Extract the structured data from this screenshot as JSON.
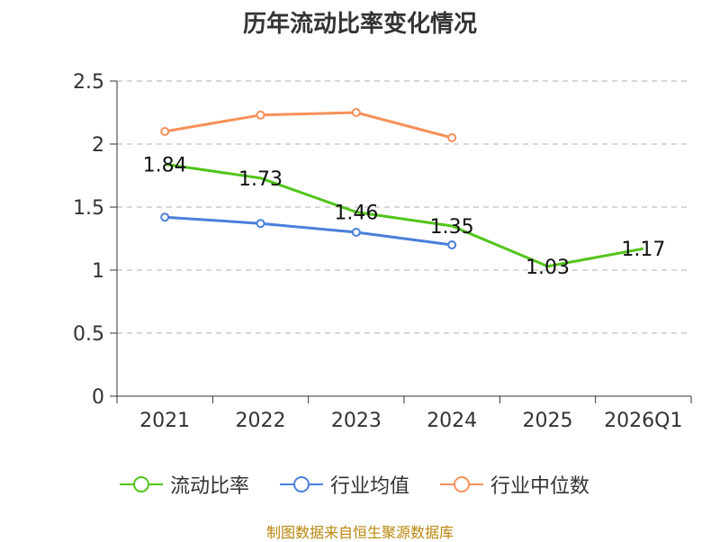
{
  "chart_data": {
    "type": "line",
    "title": "历年流动比率变化情况",
    "categories": [
      "2021",
      "2022",
      "2023",
      "2024",
      "2025",
      "2026Q1"
    ],
    "ylim": [
      0,
      2.5
    ],
    "yticks": [
      "0",
      "0.5",
      "1",
      "1.5",
      "2",
      "2.5"
    ],
    "ytick_values": [
      0,
      0.5,
      1,
      1.5,
      2,
      2.5
    ],
    "grid": true,
    "legend_position": "bottom",
    "series": [
      {
        "name": "流动比率",
        "color": "#52c41a",
        "values": [
          1.84,
          1.73,
          1.46,
          1.35,
          1.03,
          1.17
        ],
        "labels": [
          "1.84",
          "1.73",
          "1.46",
          "1.35",
          "1.03",
          "1.17"
        ],
        "markers": false
      },
      {
        "name": "行业均值",
        "color": "#4a7fdb",
        "values": [
          1.42,
          1.37,
          1.3,
          1.2,
          null,
          null
        ],
        "markers": true
      },
      {
        "name": "行业中位数",
        "color": "#f79059",
        "values": [
          2.1,
          2.23,
          2.25,
          2.05,
          null,
          null
        ],
        "markers": true
      }
    ]
  },
  "legend": {
    "items": [
      {
        "label": "流动比率",
        "color": "#52c41a"
      },
      {
        "label": "行业均值",
        "color": "#4a7fdb"
      },
      {
        "label": "行业中位数",
        "color": "#f79059"
      }
    ]
  },
  "source": "制图数据来自恒生聚源数据库"
}
